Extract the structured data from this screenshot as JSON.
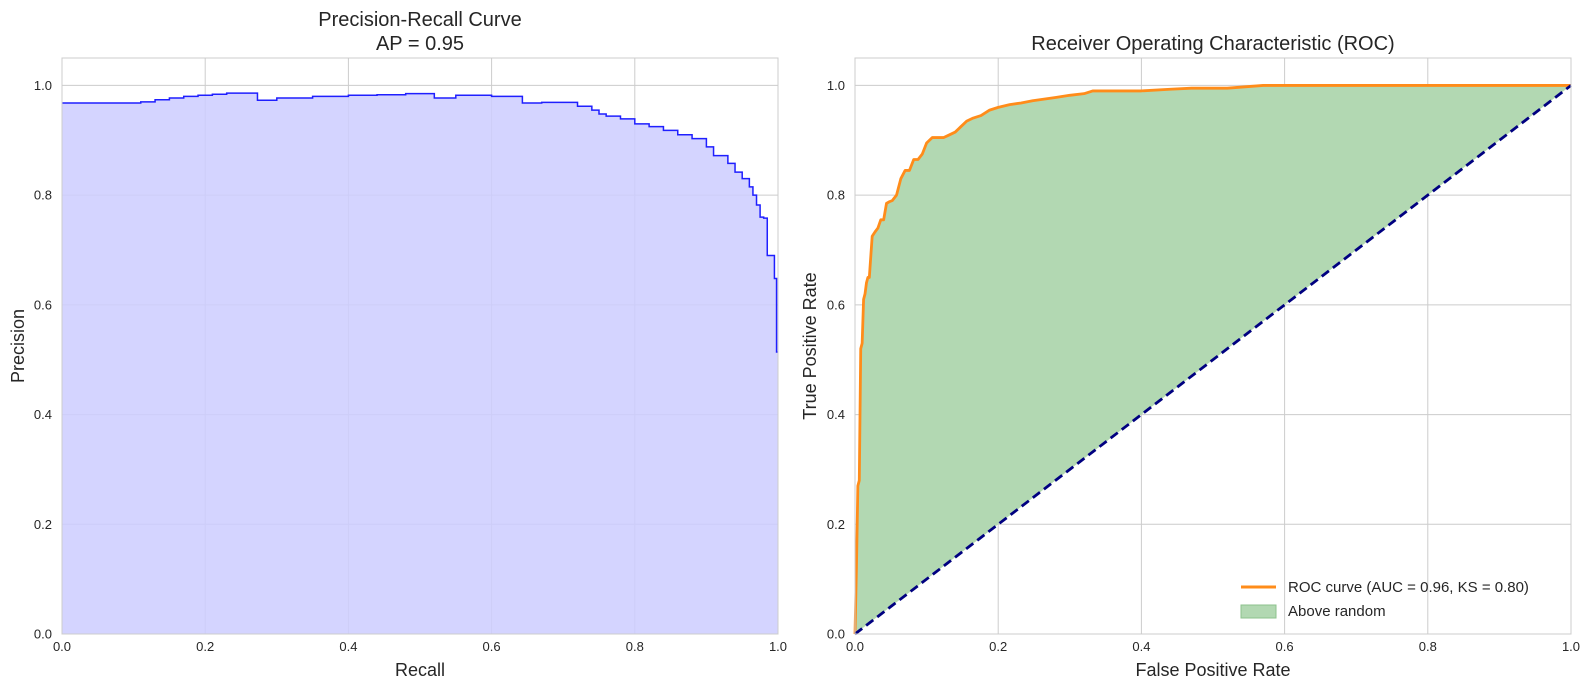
{
  "chart_data": [
    {
      "type": "area",
      "title": "Precision-Recall Curve",
      "subtitle": "AP = 0.95",
      "xlabel": "Recall",
      "ylabel": "Precision",
      "xlim": [
        0,
        1
      ],
      "ylim": [
        0,
        1.05
      ],
      "xticks": [
        "0.0",
        "0.2",
        "0.4",
        "0.6",
        "0.8",
        "1.0"
      ],
      "yticks": [
        "0.0",
        "0.2",
        "0.4",
        "0.6",
        "0.8",
        "1.0"
      ],
      "grid": true,
      "colors": {
        "line": "#1f1fff",
        "fill": "#ccccff"
      },
      "series": [
        {
          "step": "post",
          "x": [
            0.0,
            0.11,
            0.13,
            0.15,
            0.17,
            0.19,
            0.21,
            0.23,
            0.273,
            0.3,
            0.35,
            0.4,
            0.44,
            0.48,
            0.52,
            0.55,
            0.6,
            0.643,
            0.67,
            0.72,
            0.74,
            0.75,
            0.76,
            0.78,
            0.8,
            0.82,
            0.84,
            0.86,
            0.88,
            0.9,
            0.91,
            0.93,
            0.94,
            0.95,
            0.96,
            0.965,
            0.97,
            0.975,
            0.98,
            0.985,
            0.995,
            0.998,
            1.0
          ],
          "y": [
            0.968,
            0.97,
            0.974,
            0.977,
            0.98,
            0.982,
            0.984,
            0.986,
            0.973,
            0.977,
            0.98,
            0.982,
            0.983,
            0.985,
            0.977,
            0.982,
            0.98,
            0.968,
            0.969,
            0.962,
            0.955,
            0.948,
            0.944,
            0.939,
            0.93,
            0.925,
            0.918,
            0.91,
            0.903,
            0.888,
            0.872,
            0.858,
            0.842,
            0.83,
            0.815,
            0.8,
            0.782,
            0.76,
            0.758,
            0.69,
            0.648,
            0.514,
            0.514
          ]
        }
      ]
    },
    {
      "type": "line",
      "title": "Receiver Operating Characteristic (ROC)",
      "xlabel": "False Positive Rate",
      "ylabel": "True Positive Rate",
      "xlim": [
        0,
        1
      ],
      "ylim": [
        0,
        1.05
      ],
      "xticks": [
        "0.0",
        "0.2",
        "0.4",
        "0.6",
        "0.8",
        "1.0"
      ],
      "yticks": [
        "0.0",
        "0.2",
        "0.4",
        "0.6",
        "0.8",
        "1.0"
      ],
      "grid": true,
      "legend_position": "lower-right",
      "colors": {
        "roc": "#ff8c1a",
        "fill": "#b2d8b2",
        "fill_edge": "#8cc28c",
        "diagonal": "#000080"
      },
      "series": [
        {
          "name": "ROC curve (AUC = 0.96, KS = 0.80)",
          "x": [
            0.0,
            0.002,
            0.004,
            0.006,
            0.008,
            0.01,
            0.012,
            0.014,
            0.016,
            0.018,
            0.02,
            0.024,
            0.028,
            0.032,
            0.036,
            0.04,
            0.044,
            0.048,
            0.052,
            0.058,
            0.064,
            0.07,
            0.076,
            0.082,
            0.088,
            0.094,
            0.1,
            0.108,
            0.116,
            0.124,
            0.132,
            0.14,
            0.148,
            0.156,
            0.164,
            0.176,
            0.188,
            0.2,
            0.216,
            0.232,
            0.248,
            0.264,
            0.28,
            0.3,
            0.32,
            0.332,
            0.34,
            0.36,
            0.4,
            0.44,
            0.47,
            0.52,
            0.57,
            0.6,
            0.7,
            0.8,
            0.9,
            1.0
          ],
          "y": [
            0.0,
            0.12,
            0.27,
            0.28,
            0.52,
            0.53,
            0.61,
            0.62,
            0.64,
            0.65,
            0.65,
            0.725,
            0.733,
            0.74,
            0.755,
            0.755,
            0.785,
            0.788,
            0.79,
            0.8,
            0.83,
            0.845,
            0.845,
            0.865,
            0.865,
            0.875,
            0.895,
            0.905,
            0.905,
            0.905,
            0.91,
            0.915,
            0.925,
            0.935,
            0.94,
            0.945,
            0.955,
            0.96,
            0.965,
            0.968,
            0.972,
            0.975,
            0.978,
            0.982,
            0.985,
            0.99,
            0.99,
            0.99,
            0.99,
            0.993,
            0.995,
            0.995,
            1.0,
            1.0,
            1.0,
            1.0,
            1.0,
            1.0
          ]
        }
      ],
      "diagonal": {
        "x": [
          0,
          1
        ],
        "y": [
          0,
          1
        ]
      },
      "legend": [
        {
          "label": "ROC curve (AUC = 0.96, KS = 0.80)",
          "kind": "line"
        },
        {
          "label": "Above random",
          "kind": "patch"
        }
      ]
    }
  ]
}
